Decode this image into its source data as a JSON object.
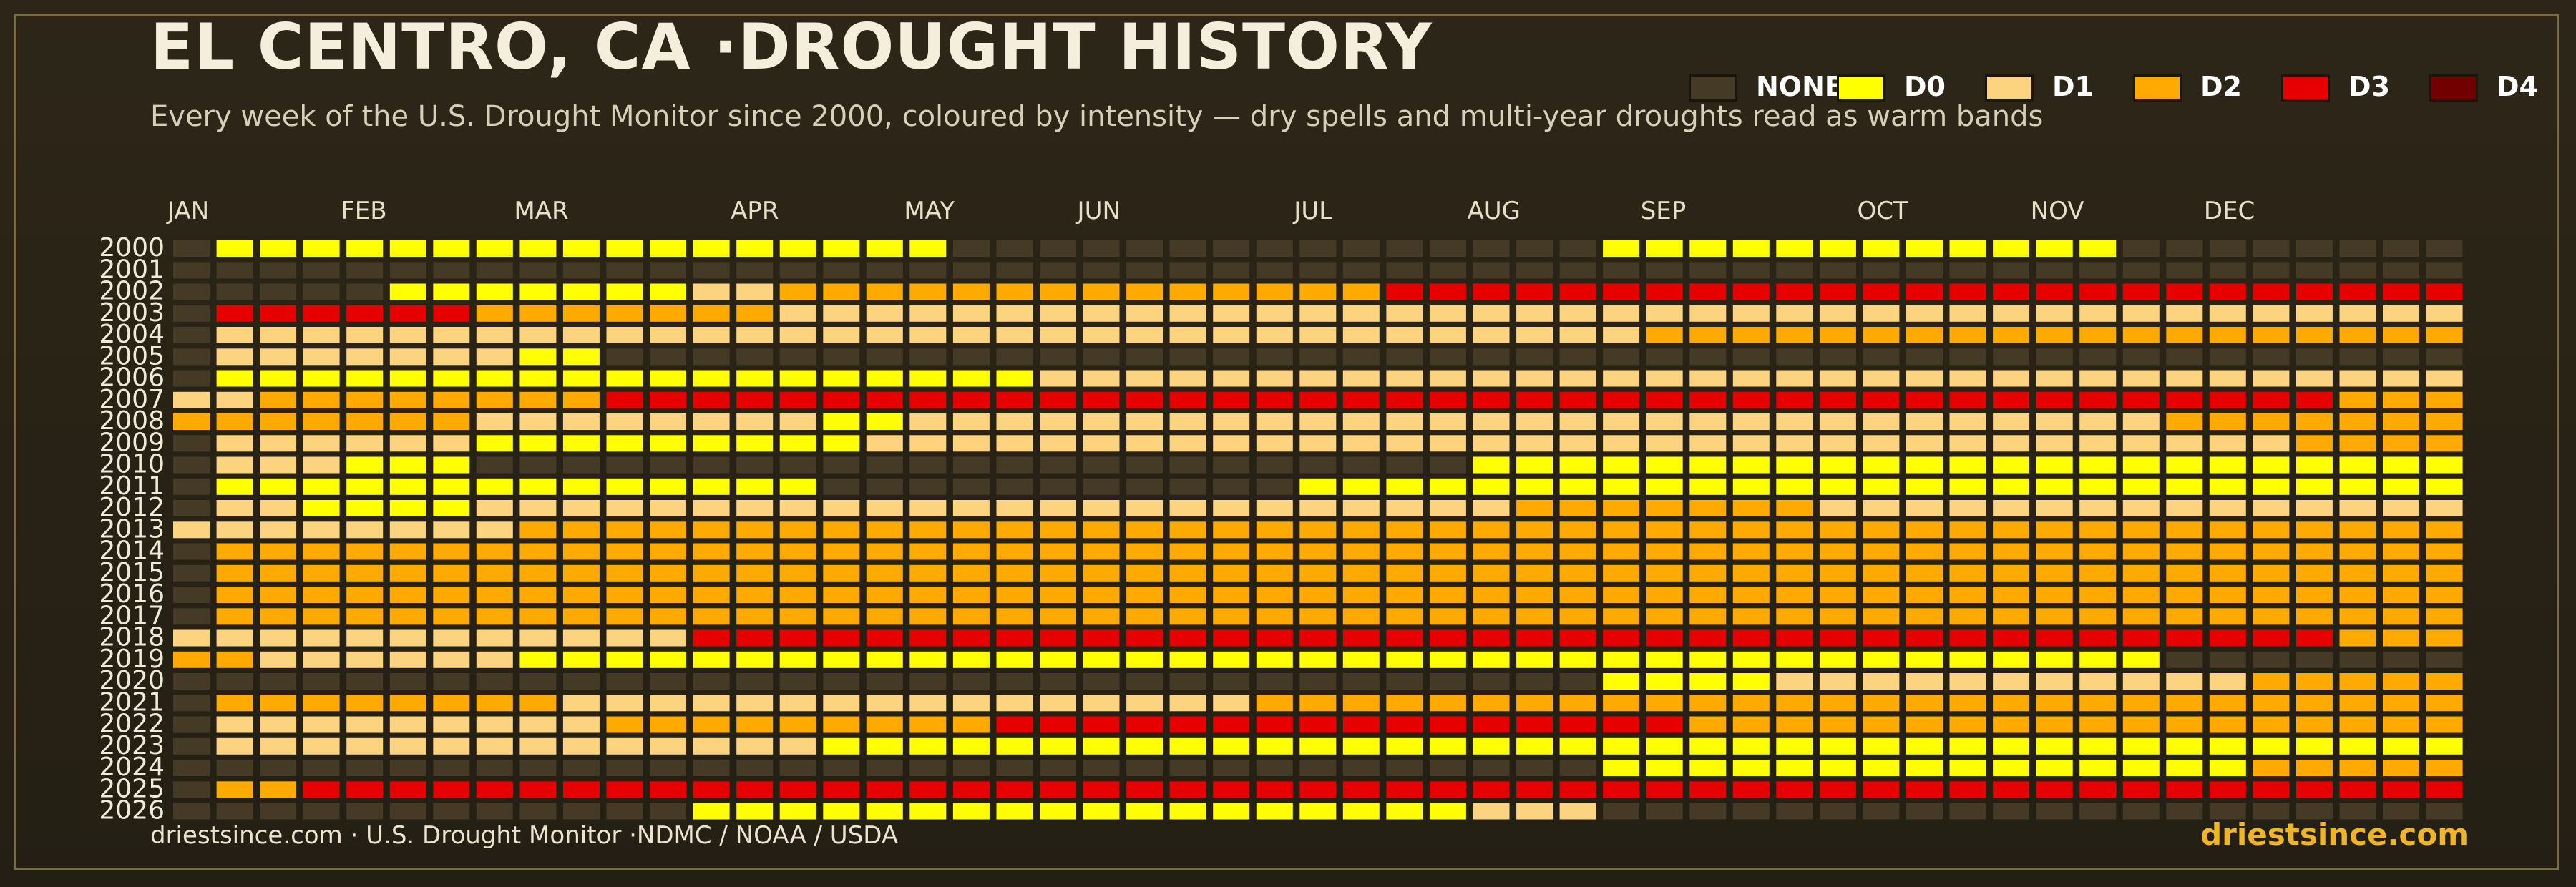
{
  "header": {
    "title": "EL CENTRO, CA ·DROUGHT HISTORY",
    "subtitle": "Every week of the U.S. Drought Monitor since 2000, coloured by intensity — dry spells and multi-year droughts read as warm bands"
  },
  "legend": [
    {
      "label": "NONE",
      "color": "#443a26"
    },
    {
      "label": "D0",
      "color": "#ffff00"
    },
    {
      "label": "D1",
      "color": "#fcd37f"
    },
    {
      "label": "D2",
      "color": "#ffaa00"
    },
    {
      "label": "D3",
      "color": "#e60000"
    },
    {
      "label": "D4",
      "color": "#730000"
    }
  ],
  "footer": {
    "source": "driestsince.com  · U.S. Drought Monitor ·NDMC / NOAA / USDA",
    "brand": "driestsince.com"
  },
  "chart_data": {
    "type": "heatmap",
    "title": "EL CENTRO, CA ·DROUGHT HISTORY",
    "x_unit": "week of year",
    "y_unit": "year",
    "months": [
      "JAN",
      "FEB",
      "MAR",
      "APR",
      "MAY",
      "JUN",
      "JUL",
      "AUG",
      "SEP",
      "OCT",
      "NOV",
      "DEC"
    ],
    "month_start_weeks": [
      1,
      5,
      9,
      14,
      18,
      22,
      27,
      31,
      35,
      40,
      44,
      48
    ],
    "weeks_per_year": 53,
    "years": [
      "2000",
      "2001",
      "2002",
      "2003",
      "2004",
      "2005",
      "2006",
      "2007",
      "2008",
      "2009",
      "2010",
      "2011",
      "2012",
      "2013",
      "2014",
      "2015",
      "2016",
      "2017",
      "2018",
      "2019",
      "2020",
      "2021",
      "2022",
      "2023",
      "2024",
      "2025",
      "2026"
    ],
    "categories": [
      "NONE",
      "D0",
      "D1",
      "D2",
      "D3",
      "D4"
    ],
    "note_levels": "0=NONE 1=D0 2=D1 3=D2 4=D3 5=D4; weekly values as run-lengths [level, weeks]",
    "runs": [
      [
        [
          0,
          1
        ],
        [
          1,
          17
        ],
        [
          0,
          15
        ],
        [
          1,
          12
        ],
        [
          0,
          8
        ]
      ],
      [
        [
          0,
          53
        ]
      ],
      [
        [
          0,
          5
        ],
        [
          1,
          7
        ],
        [
          2,
          2
        ],
        [
          3,
          14
        ],
        [
          4,
          25
        ]
      ],
      [
        [
          0,
          1
        ],
        [
          4,
          6
        ],
        [
          3,
          7
        ],
        [
          2,
          39
        ]
      ],
      [
        [
          0,
          1
        ],
        [
          2,
          33
        ],
        [
          3,
          19
        ]
      ],
      [
        [
          0,
          1
        ],
        [
          2,
          7
        ],
        [
          1,
          2
        ],
        [
          0,
          43
        ]
      ],
      [
        [
          0,
          1
        ],
        [
          1,
          19
        ],
        [
          2,
          33
        ]
      ],
      [
        [
          2,
          2
        ],
        [
          3,
          8
        ],
        [
          4,
          40
        ],
        [
          3,
          3
        ]
      ],
      [
        [
          3,
          7
        ],
        [
          2,
          8
        ],
        [
          1,
          2
        ],
        [
          2,
          29
        ],
        [
          3,
          7
        ]
      ],
      [
        [
          0,
          1
        ],
        [
          2,
          6
        ],
        [
          1,
          9
        ],
        [
          2,
          33
        ],
        [
          3,
          4
        ]
      ],
      [
        [
          0,
          1
        ],
        [
          2,
          3
        ],
        [
          1,
          3
        ],
        [
          0,
          23
        ],
        [
          1,
          23
        ]
      ],
      [
        [
          0,
          1
        ],
        [
          1,
          14
        ],
        [
          0,
          11
        ],
        [
          1,
          27
        ]
      ],
      [
        [
          0,
          1
        ],
        [
          2,
          2
        ],
        [
          1,
          4
        ],
        [
          2,
          24
        ],
        [
          3,
          7
        ],
        [
          2,
          15
        ]
      ],
      [
        [
          2,
          8
        ],
        [
          3,
          45
        ]
      ],
      [
        [
          0,
          1
        ],
        [
          3,
          52
        ]
      ],
      [
        [
          0,
          1
        ],
        [
          3,
          52
        ]
      ],
      [
        [
          0,
          1
        ],
        [
          3,
          52
        ]
      ],
      [
        [
          0,
          1
        ],
        [
          3,
          52
        ]
      ],
      [
        [
          2,
          12
        ],
        [
          4,
          38
        ],
        [
          3,
          3
        ]
      ],
      [
        [
          3,
          2
        ],
        [
          2,
          6
        ],
        [
          1,
          38
        ],
        [
          0,
          7
        ]
      ],
      [
        [
          0,
          33
        ],
        [
          1,
          4
        ],
        [
          2,
          11
        ],
        [
          3,
          5
        ]
      ],
      [
        [
          0,
          1
        ],
        [
          3,
          8
        ],
        [
          2,
          16
        ],
        [
          3,
          28
        ]
      ],
      [
        [
          0,
          1
        ],
        [
          2,
          9
        ],
        [
          3,
          9
        ],
        [
          4,
          16
        ],
        [
          3,
          18
        ]
      ],
      [
        [
          0,
          1
        ],
        [
          2,
          14
        ],
        [
          1,
          38
        ]
      ],
      [
        [
          0,
          33
        ],
        [
          1,
          15
        ],
        [
          3,
          5
        ]
      ],
      [
        [
          0,
          1
        ],
        [
          3,
          2
        ],
        [
          4,
          50
        ]
      ],
      [
        [
          0,
          12
        ],
        [
          1,
          18
        ],
        [
          2,
          3
        ],
        [
          0,
          20
        ]
      ]
    ]
  }
}
